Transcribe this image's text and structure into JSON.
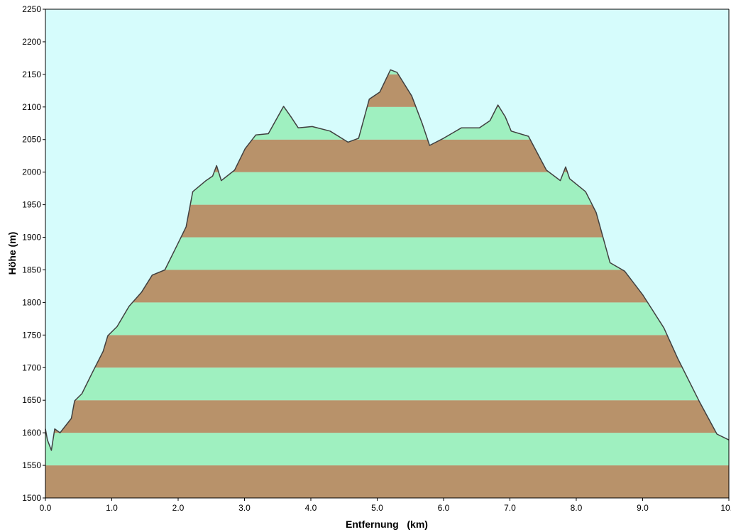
{
  "chart_data": {
    "type": "area",
    "x_label": "Entfernung   (km)",
    "y_label": "Höhe (m)",
    "background": "#d6fcfc",
    "line_color": "#404040",
    "band_colors": [
      "#b8926a",
      "#9ff0c0"
    ],
    "xlim": [
      0,
      10.3
    ],
    "ylim": [
      1500,
      2250
    ],
    "xticks": [
      {
        "value": 0,
        "label": "0.0"
      },
      {
        "value": 1,
        "label": "1.0"
      },
      {
        "value": 2,
        "label": "2.0"
      },
      {
        "value": 3,
        "label": "3.0"
      },
      {
        "value": 4,
        "label": "4.0"
      },
      {
        "value": 5,
        "label": "5.0"
      },
      {
        "value": 6,
        "label": "6.0"
      },
      {
        "value": 7,
        "label": "7.0"
      },
      {
        "value": 8,
        "label": "8.0"
      },
      {
        "value": 9,
        "label": "9.0"
      },
      10.3
    ],
    "yticks": [
      1500,
      1550,
      1600,
      1650,
      1700,
      1750,
      1800,
      1850,
      1900,
      1950,
      2000,
      2050,
      2100,
      2150,
      2200,
      2250
    ],
    "x": [
      0,
      0.03,
      0.09,
      0.14,
      0.22,
      0.39,
      0.44,
      0.55,
      0.71,
      0.87,
      0.94,
      1.08,
      1.26,
      1.45,
      1.61,
      1.8,
      1.99,
      2.12,
      2.22,
      2.42,
      2.52,
      2.58,
      2.65,
      2.85,
      3.01,
      3.17,
      3.36,
      3.59,
      3.7,
      3.81,
      4.02,
      4.29,
      4.56,
      4.72,
      4.88,
      5.04,
      5.2,
      5.3,
      5.52,
      5.68,
      5.79,
      6.0,
      6.27,
      6.54,
      6.7,
      6.82,
      6.93,
      7.02,
      7.28,
      7.55,
      7.76,
      7.84,
      7.9,
      8.14,
      8.3,
      8.51,
      8.73,
      9.0,
      9.32,
      9.53,
      9.85,
      10.12,
      10.3
    ],
    "values": [
      1606,
      1589,
      1573,
      1606,
      1600,
      1622,
      1649,
      1660,
      1693,
      1725,
      1749,
      1763,
      1794,
      1816,
      1842,
      1850,
      1889,
      1916,
      1970,
      1987,
      1994,
      2010,
      1987,
      2003,
      2036,
      2057,
      2059,
      2101,
      2085,
      2068,
      2070,
      2063,
      2046,
      2052,
      2112,
      2123,
      2157,
      2153,
      2117,
      2074,
      2041,
      2052,
      2068,
      2068,
      2079,
      2103,
      2085,
      2063,
      2055,
      2003,
      1987,
      2008,
      1990,
      1970,
      1938,
      1861,
      1848,
      1812,
      1761,
      1714,
      1649,
      1598,
      1589
    ]
  }
}
